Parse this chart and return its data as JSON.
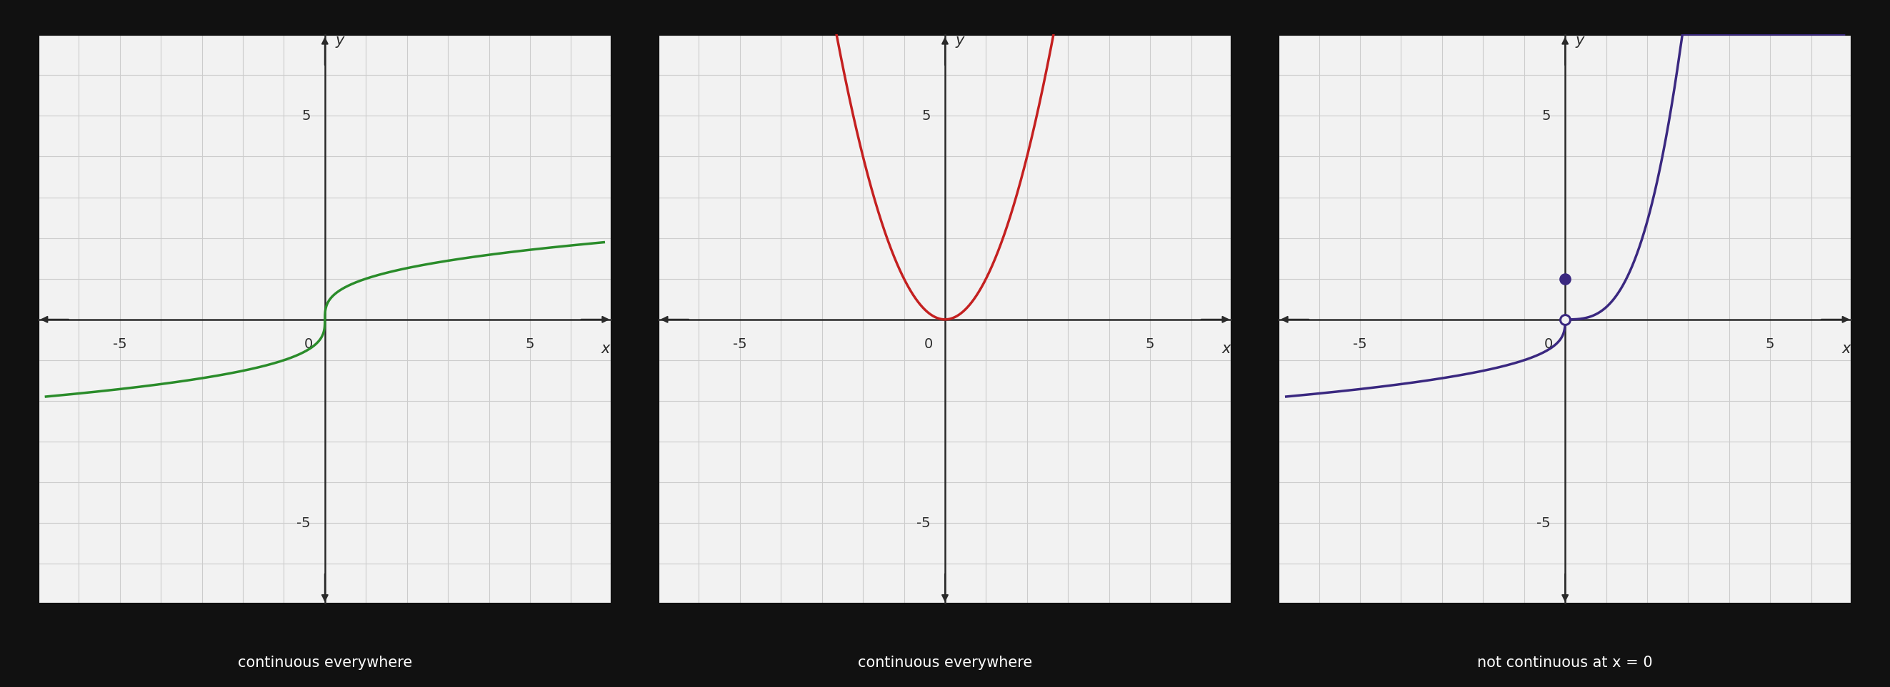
{
  "background_color": "#111111",
  "panel_bg": "#f2f2f2",
  "grid_color": "#cccccc",
  "axis_color": "#2a2a2a",
  "border_color": "#111111",
  "xlim": [
    -7,
    7
  ],
  "ylim": [
    -7,
    7
  ],
  "xlabel": "x",
  "ylabel": "y",
  "curve1_color": "#2a8c2a",
  "curve2_color": "#c42020",
  "curve3_color": "#3a2880",
  "label1": "continuous everywhere",
  "label2": "continuous everywhere",
  "label3": "not continuous at x = 0",
  "label_color": "#ffffff",
  "label_fontsize": 15,
  "tick_fontsize": 14,
  "axis_label_fontsize": 15,
  "dot_filled_color": "#3a2880",
  "dot_open_bg": "#f2f2f2",
  "dot_open_edge": "#3a2880",
  "arrow_color": "#2a2a2a",
  "lw": 2.5
}
